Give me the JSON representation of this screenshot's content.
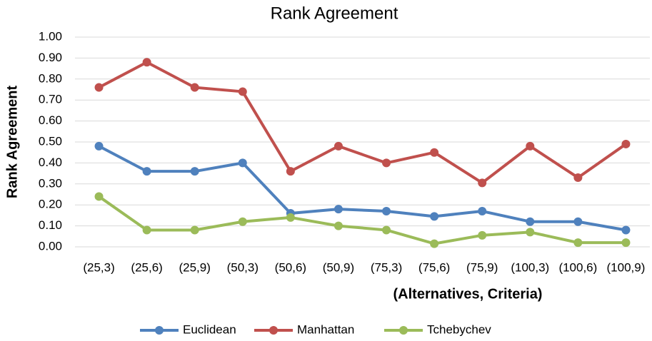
{
  "chart_data": {
    "type": "line",
    "title": "Rank Agreement",
    "x_label": "(Alternatives, Criteria)",
    "y_label": "Rank Agreement",
    "categories": [
      "(25,3)",
      "(25,6)",
      "(25,9)",
      "(50,3)",
      "(50,6)",
      "(50,9)",
      "(75,3)",
      "(75,6)",
      "(75,9)",
      "(100,3)",
      "(100,6)",
      "(100,9)"
    ],
    "series": [
      {
        "name": "Euclidean",
        "color": "#4f81bd",
        "values": [
          0.48,
          0.36,
          0.36,
          0.4,
          0.16,
          0.18,
          0.17,
          0.145,
          0.17,
          0.12,
          0.12,
          0.08
        ]
      },
      {
        "name": "Manhattan",
        "color": "#c0504d",
        "values": [
          0.76,
          0.88,
          0.76,
          0.74,
          0.36,
          0.48,
          0.4,
          0.45,
          0.305,
          0.48,
          0.33,
          0.49
        ]
      },
      {
        "name": "Tchebychev",
        "color": "#9bbb59",
        "values": [
          0.24,
          0.08,
          0.08,
          0.12,
          0.14,
          0.1,
          0.08,
          0.015,
          0.055,
          0.07,
          0.02,
          0.02
        ]
      }
    ],
    "ylim": [
      0,
      1
    ],
    "yticks": [
      {
        "value": 0,
        "label": "0.00"
      },
      {
        "value": 0.1,
        "label": "0.10"
      },
      {
        "value": 0.2,
        "label": "0.20"
      },
      {
        "value": 0.3,
        "label": "0.30"
      },
      {
        "value": 0.4,
        "label": "0.40"
      },
      {
        "value": 0.5,
        "label": "0.50"
      },
      {
        "value": 0.6,
        "label": "0.60"
      },
      {
        "value": 0.7,
        "label": "0.70"
      },
      {
        "value": 0.8,
        "label": "0.80"
      },
      {
        "value": 0.9,
        "label": "0.90"
      },
      {
        "value": 1,
        "label": "1.00"
      }
    ],
    "grid": true,
    "legend": "bottom"
  }
}
